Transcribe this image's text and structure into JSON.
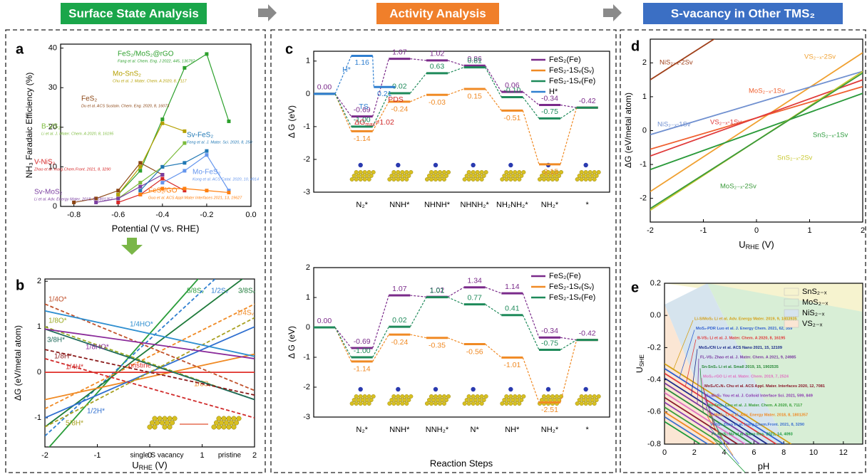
{
  "headers": [
    {
      "text": "Surface State Analysis",
      "color": "#1aa64a"
    },
    {
      "text": "Activity Analysis",
      "color": "#f07f2a"
    },
    {
      "text": "S-vacancy in Other TMS₂",
      "color": "#3b6fc4"
    }
  ],
  "chart_data": [
    {
      "type": "line",
      "panel": "a",
      "xlabel": "Potential (V vs. RHE)",
      "ylabel": "NH₃ Faradaic Efficiency (%)",
      "xlim": [
        -0.86,
        0
      ],
      "xticks": [
        -0.8,
        -0.6,
        -0.4,
        -0.2,
        {
          "value": 0,
          "label": "0.0"
        }
      ],
      "ylim": [
        0,
        41
      ],
      "yticks": [
        0,
        10,
        20,
        30,
        40
      ],
      "markers": true,
      "series": [
        {
          "name": "FeS₂/MoS₂@rGO",
          "ref": "Fang et al. Chem. Eng. J 2022, 445, 136797",
          "color": "#2ca02c",
          "x": [
            -0.6,
            -0.5,
            -0.4,
            -0.3,
            -0.2,
            -0.1
          ],
          "values": [
            3,
            9,
            22,
            35,
            38.5,
            21.5
          ]
        },
        {
          "name": "Mo-SnS₂",
          "ref": "Chu et al. J. Mater. Chem. A 2020, 8, 7117",
          "color": "#b5a000",
          "x": [
            -0.6,
            -0.5,
            -0.4,
            -0.3
          ],
          "values": [
            3,
            10,
            21,
            19
          ]
        },
        {
          "name": "FeS₂",
          "ref": "Du et al. ACS Sustain. Chem. Eng. 2020, 8, 16073",
          "color": "#8b4513",
          "x": [
            -0.8,
            -0.7,
            -0.6,
            -0.5,
            -0.4
          ],
          "values": [
            1,
            2,
            4,
            11,
            8
          ]
        },
        {
          "name": "B-VS₂",
          "ref": "Li et al. J. Mater. Chem. A 2020, 8, 16195",
          "color": "#7cbb3c",
          "x": [
            -0.6,
            -0.5,
            -0.4,
            -0.3
          ],
          "values": [
            2,
            6,
            10,
            16
          ]
        },
        {
          "name": "V-NiS₂",
          "ref": "Zhao et al. Inorg.Chem.Front. 2021, 8, 3290",
          "color": "#d62728",
          "x": [
            -0.6,
            -0.5,
            -0.4,
            -0.3
          ],
          "values": [
            1,
            3,
            7,
            4
          ]
        },
        {
          "name": "Sv-MoS₂",
          "ref": "Li et al. Adv. Energy Mater. 2018, 8, 1801357",
          "color": "#7b3fa0",
          "x": [
            -0.7,
            -0.6,
            -0.5,
            -0.4
          ],
          "values": [
            1,
            2,
            5,
            8
          ]
        },
        {
          "name": "Sv-FeS₂",
          "ref": "Feng et al. J. Mater. Sci. 2020, 8, 250",
          "color": "#1f77b4",
          "x": [
            -0.5,
            -0.4,
            -0.3,
            -0.2
          ],
          "values": [
            4,
            10,
            11,
            14
          ]
        },
        {
          "name": "Mo-FeS₂",
          "ref": "Kong et al. ACS Catal. 2020, 10, 4914",
          "color": "#6495ed",
          "x": [
            -0.4,
            -0.3,
            -0.2,
            -0.1
          ],
          "values": [
            6,
            9,
            13,
            4
          ]
        },
        {
          "name": "FeS₂/GO",
          "ref": "Guo et al. ACS Appl Mater Interfaces 2021, 13, 19627",
          "color": "#ff7f0e",
          "x": [
            -0.5,
            -0.4,
            -0.3,
            -0.2,
            -0.1
          ],
          "values": [
            3,
            4.5,
            4.5,
            4,
            3.5
          ]
        }
      ]
    },
    {
      "type": "line",
      "panel": "b",
      "xlabel": [
        "U",
        "RHE",
        " (V)"
      ],
      "ylabel": "ΔG (eV/metal atom)",
      "x": [
        -2,
        2
      ],
      "xlim": [
        -2,
        2
      ],
      "xticks": [
        -2,
        -1,
        0,
        1,
        2
      ],
      "ylim": [
        -1.64,
        2.05
      ],
      "yticks": [
        -1,
        0,
        1,
        2
      ],
      "series": [
        {
          "name": "5/8Sᵥ",
          "color": "#2a9d3a",
          "values": [
            -1.75,
            3.45
          ]
        },
        {
          "name": "1/2Sᵥ",
          "color": "#2f7fd0",
          "dash": true,
          "values": [
            -1.4,
            2.85
          ]
        },
        {
          "name": "3/8Sᵥ",
          "color": "#1e7a3a",
          "values": [
            -1.2,
            2.25
          ]
        },
        {
          "name": "1/4Sᵥ",
          "color": "#f08a24",
          "dash": true,
          "values": [
            -0.8,
            1.5
          ]
        },
        {
          "name": "1/8Sᵥ",
          "color": "#f08a24",
          "values": [
            -0.6,
            0.4
          ]
        },
        {
          "name": "pristine",
          "color": "#e0302a",
          "values": [
            0,
            0
          ]
        },
        {
          "name": "1/2H*",
          "color": "#2f6fd0",
          "values": [
            -1,
            1
          ]
        },
        {
          "name": "5/8H*",
          "color": "#a8a020",
          "dash": true,
          "values": [
            -1.2,
            1.2
          ]
        },
        {
          "name": "1/4O*",
          "color": "#c0502a",
          "dash": true,
          "values": [
            1.5,
            -0.4
          ]
        },
        {
          "name": "1/8O*",
          "color": "#9aaa20",
          "dash": true,
          "values": [
            1,
            -0.6
          ]
        },
        {
          "name": "1/4HO*",
          "color": "#2f8fd0",
          "values": [
            1.35,
            0.35
          ]
        },
        {
          "name": "3/8H*",
          "color": "#1e6a5a",
          "values": [
            0.95,
            -0.6
          ]
        },
        {
          "name": "1/8HO*",
          "color": "#8a2a9a",
          "values": [
            0.95,
            0.3
          ]
        },
        {
          "name": "1/8H*",
          "color": "#8a1a1a",
          "dash": true,
          "values": [
            0.5,
            -0.5
          ]
        },
        {
          "name": "1/4H*",
          "color": "#d02a2a",
          "dash": true,
          "values": [
            0.3,
            -1
          ]
        }
      ],
      "annotations": [
        {
          "text": "single S vacancy",
          "color": "#000"
        },
        {
          "text": "pristine",
          "color": "#000"
        }
      ]
    },
    {
      "type": "energy",
      "panel": "c",
      "ylabel": "Δ G (eV)",
      "ylim": [
        -3,
        1.3
      ],
      "yticks": [
        -3,
        -2,
        -1,
        0,
        1
      ],
      "legend": "upper right",
      "categories": [
        null,
        "N₂*",
        "NNH*",
        "NHNH*",
        "NHNH₂*",
        "NH₂NH₂*",
        "NH₂*",
        "*"
      ],
      "series": [
        {
          "name": "FeS₂(Fe)",
          "color": "#7a2a8a",
          "values": [
            0,
            -0.69,
            1.07,
            1.02,
            0.86,
            0.06,
            -0.34,
            -0.42
          ],
          "value_labels": [
            "0.00",
            "-0.69",
            "1.07",
            "1.02",
            "0.86",
            "0.06",
            "-0.34",
            "-0.42"
          ]
        },
        {
          "name": "FeS₂-1Sᵥ(Sᵥ)",
          "color": "#f08a24",
          "values": [
            0,
            -1.14,
            -0.24,
            -0.03,
            0.15,
            -0.51,
            -2.15,
            -0.42
          ],
          "value_labels": [
            null,
            "-1.14",
            "-0.24",
            "-0.03",
            "0.15",
            "-0.51",
            "-2.15",
            null
          ]
        },
        {
          "name": "FeS₂-1Sᵥ(Fe)",
          "color": "#1e8a5a",
          "values": [
            0,
            -1,
            0.02,
            0.63,
            0.81,
            -0.1,
            -0.75,
            -0.42
          ],
          "value_labels": [
            null,
            "-1.00",
            "0.02",
            "0.63",
            "0.81",
            "-0.10",
            "-0.75",
            null
          ]
        },
        {
          "name": "H*",
          "color": "#2f7fd0",
          "x": [
            0,
            1,
            1.6
          ],
          "values": [
            0,
            1.16,
            0.21
          ],
          "value_labels": [
            null,
            "1.16",
            "0.21"
          ]
        }
      ],
      "annotations": [
        {
          "text": "H*",
          "color": "#2f7fd0"
        },
        {
          "text": "TS",
          "color": "#2f7fd0"
        },
        {
          "text": "PDS",
          "color": "#d02a2a"
        },
        {
          "text": [
            "ΔG",
            "max",
            "=1.02"
          ],
          "color": "#d02a2a"
        }
      ]
    },
    {
      "type": "energy",
      "panel": null,
      "xlabel": "Reaction Steps",
      "ylabel": "Δ G (eV)",
      "ylim": [
        -3,
        2
      ],
      "yticks": [
        -3,
        -2,
        -1,
        0,
        1,
        2
      ],
      "legend": "upper right",
      "categories": [
        null,
        "N₂*",
        "NNH*",
        "NNH₂*",
        "N*",
        "NH*",
        "NH₂*",
        "*"
      ],
      "series": [
        {
          "name": "FeS₂(Fe)",
          "color": "#7a2a8a",
          "values": [
            0,
            -0.69,
            1.07,
            1.02,
            1.34,
            1.14,
            -0.34,
            -0.42
          ],
          "value_labels": [
            "0.00",
            "-0.69",
            "1.07",
            "1.02",
            "1.34",
            "1.14",
            "-0.34",
            "-0.42"
          ]
        },
        {
          "name": "FeS₂-1Sᵥ(Sᵥ)",
          "color": "#f08a24",
          "values": [
            0,
            -1.14,
            -0.24,
            -0.35,
            -0.56,
            -1.01,
            -2.51,
            -0.42
          ],
          "value_labels": [
            null,
            "-1.14",
            "-0.24",
            "-0.35",
            "-0.56",
            "-1.01",
            "-2.51",
            null
          ]
        },
        {
          "name": "FeS₂-1Sᵥ(Fe)",
          "color": "#1e8a5a",
          "values": [
            0,
            -1,
            0.02,
            1.01,
            0.77,
            0.41,
            -0.75,
            -0.42
          ],
          "value_labels": [
            null,
            "-1.00",
            "0.02",
            "1.01",
            "0.77",
            "0.41",
            "-0.75",
            null
          ]
        }
      ]
    },
    {
      "type": "line",
      "panel": "d",
      "xlabel": [
        "U",
        "RHE",
        " (V)"
      ],
      "ylabel": "ΔG (eV/metal atom)",
      "x": [
        -2,
        2
      ],
      "xlim": [
        -2,
        2
      ],
      "xticks": [
        -2,
        -1,
        0,
        1,
        2
      ],
      "ylim": [
        -2.7,
        2.7
      ],
      "yticks": [
        -2,
        -1,
        0,
        1,
        2
      ],
      "series": [
        {
          "name": "NiS₂₋ₓ-2Sv",
          "color": "#a0401a",
          "values": [
            1.5,
            5.5
          ]
        },
        {
          "name": "VS₂₋ₓ-2Sv",
          "color": "#f0a030",
          "values": [
            -1.8,
            2.3
          ]
        },
        {
          "name": "MoS₂₋ₓ-1Sv",
          "color": "#f06030",
          "values": [
            -0.55,
            1.3
          ]
        },
        {
          "name": "NiS₂₋ₓ-1Sv",
          "color": "#7090d0",
          "values": [
            -0.12,
            1.75
          ]
        },
        {
          "name": "VS₂₋ₓ-1Sv",
          "color": "#e03a3a",
          "values": [
            -0.75,
            1.5
          ]
        },
        {
          "name": "SnS₂₋ₓ-1Sv",
          "color": "#2a9a3a",
          "values": [
            -1.15,
            1.1
          ]
        },
        {
          "name": "SnS₂₋ₓ-2Sv",
          "color": "#c8c830",
          "values": [
            -2.35,
            1.75
          ]
        },
        {
          "name": "MoS₂₋ₓ-2Sv",
          "color": "#3a9a3a",
          "values": [
            -2.3,
            1.7
          ]
        }
      ]
    },
    {
      "type": "line",
      "panel": "e",
      "xlabel": "pH",
      "ylabel": [
        "U",
        "SHE"
      ],
      "xlim": [
        0,
        13.3
      ],
      "xticks": [
        0,
        2,
        4,
        6,
        8,
        10,
        12
      ],
      "ylim": [
        -0.8,
        0.2
      ],
      "yticks": [
        -0.8,
        -0.6,
        -0.4,
        -0.2,
        {
          "value": 0,
          "label": "0.0"
        },
        0.2
      ],
      "legend": "upper right",
      "regions": [
        {
          "name": "SnS₂₋ₓ",
          "color": "#f6f3cf"
        },
        {
          "name": "MoS₂₋ₓ",
          "color": "#d8eed6"
        },
        {
          "name": "NiS₂₋ₓ",
          "color": "#d6e4ee"
        },
        {
          "name": "VS₂₋ₓ",
          "color": "#fbe6d4"
        }
      ],
      "series": [
        {
          "name": "Li-S/MoS₂ Li et al. Adv. Energy Mater. 2019, 9, 1803935",
          "color": "#d4a017",
          "x": [
            0,
            8.5
          ],
          "values": [
            -0.3,
            -0.8
          ]
        },
        {
          "name": "MoS₂-PDR Luo et al. J. Energy Chem. 2021, 62, 359",
          "color": "#2f5fd0",
          "x": [
            0,
            8
          ],
          "values": [
            -0.33,
            -0.8
          ]
        },
        {
          "name": "B-VS₂ Li et al. J. Mater. Chem. A 2020, 8, 16195",
          "color": "#e03a3a",
          "x": [
            0,
            7.5
          ],
          "values": [
            -0.36,
            -0.8
          ]
        },
        {
          "name": "MoS₂/CN Lv et al. ACS Nano 2021, 15, 12109",
          "color": "#1a2a8a",
          "x": [
            0,
            6.9
          ],
          "values": [
            -0.39,
            -0.8
          ]
        },
        {
          "name": "FL-VS₂ Zhao et al. J. Mater. Chem. A 2021, 9, 24985",
          "color": "#7a3aa0",
          "x": [
            0,
            6.4
          ],
          "values": [
            -0.42,
            -0.8
          ]
        },
        {
          "name": "Sn-SnS₂ Li et al. Small 2019, 15, 1902535",
          "color": "#2a8a3a",
          "x": [
            0,
            5.9
          ],
          "values": [
            -0.45,
            -0.8
          ]
        },
        {
          "name": "MoS₂-rGO Li et al. Mater. Chem. 2019, 7, 2524",
          "color": "#e070c0",
          "x": [
            0,
            5.4
          ],
          "values": [
            -0.48,
            -0.8
          ]
        },
        {
          "name": "MoS₂/C₃N₄ Chu et al. ACS Appl. Mater. Interfaces 2020, 12, 7081",
          "color": "#8a1a2a",
          "x": [
            0,
            4.9
          ],
          "values": [
            -0.51,
            -0.8
          ]
        },
        {
          "name": "Sᵥ-MoS₂ You et al. J. Colloid Interface Sci. 2021, 599, 849",
          "color": "#8a3ab0",
          "x": [
            0,
            4.4
          ],
          "values": [
            -0.54,
            -0.8
          ]
        },
        {
          "name": "Mo-SnS₂ Chu et al. J. Mater. Chem. A 2020, 8, 7117",
          "color": "#3aa03a",
          "x": [
            0,
            3.9
          ],
          "values": [
            -0.57,
            -0.8
          ]
        },
        {
          "name": "Sᵥ-MoS₂ Li et al. Adv. Energy Mater. 2018, 8, 1801357",
          "color": "#f08a24",
          "x": [
            0,
            3.4
          ],
          "values": [
            -0.6,
            -0.8
          ]
        },
        {
          "name": "V-NiS₂ Zhao et al. Inorg.Chem.Front. 2021, 8, 3290",
          "color": "#3a6fd0",
          "x": [
            0,
            2.9
          ],
          "values": [
            -0.63,
            -0.8
          ]
        },
        {
          "name": "Fe-MoS₂ Nu et al. Nano Res. 2021, 14, 4093",
          "color": "#1a9a3a",
          "x": [
            0,
            2.4
          ],
          "values": [
            -0.66,
            -0.8
          ]
        }
      ]
    }
  ]
}
